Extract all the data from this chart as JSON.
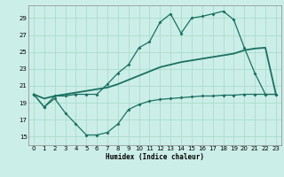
{
  "bg_color": "#cceee8",
  "grid_color": "#aaddcc",
  "line_color": "#1a7060",
  "xlabel": "Humidex (Indice chaleur)",
  "xlim": [
    -0.5,
    23.5
  ],
  "ylim": [
    14,
    30.5
  ],
  "yticks": [
    15,
    17,
    19,
    21,
    23,
    25,
    27,
    29
  ],
  "xticks": [
    0,
    1,
    2,
    3,
    4,
    5,
    6,
    7,
    8,
    9,
    10,
    11,
    12,
    13,
    14,
    15,
    16,
    17,
    18,
    19,
    20,
    21,
    22,
    23
  ],
  "line1_x": [
    0,
    1,
    2,
    3,
    4,
    5,
    6,
    7,
    8,
    9,
    10,
    11,
    12,
    13,
    14,
    15,
    16,
    17,
    18,
    19,
    20,
    21,
    22,
    23
  ],
  "line1_y": [
    20.0,
    18.5,
    19.8,
    19.8,
    20.0,
    20.0,
    20.0,
    21.2,
    22.5,
    23.5,
    25.5,
    26.2,
    28.5,
    29.5,
    27.2,
    29.0,
    29.2,
    29.5,
    29.8,
    28.8,
    25.5,
    22.5,
    20.0,
    20.0
  ],
  "line2_x": [
    0,
    1,
    2,
    3,
    4,
    5,
    6,
    7,
    8,
    9,
    10,
    11,
    12,
    13,
    14,
    15,
    16,
    17,
    18,
    19,
    20,
    21,
    22,
    23
  ],
  "line2_y": [
    20.0,
    19.5,
    19.8,
    20.0,
    20.2,
    20.4,
    20.6,
    20.8,
    21.2,
    21.7,
    22.2,
    22.7,
    23.2,
    23.5,
    23.8,
    24.0,
    24.2,
    24.4,
    24.6,
    24.8,
    25.2,
    25.4,
    25.5,
    20.0
  ],
  "line3_x": [
    0,
    1,
    2,
    3,
    4,
    5,
    6,
    7,
    8,
    9,
    10,
    11,
    12,
    13,
    14,
    15,
    16,
    17,
    18,
    19,
    20,
    21,
    22,
    23
  ],
  "line3_y": [
    20.0,
    18.5,
    19.5,
    17.8,
    16.5,
    15.2,
    15.2,
    15.5,
    16.5,
    18.2,
    18.8,
    19.2,
    19.4,
    19.5,
    19.6,
    19.7,
    19.8,
    19.8,
    19.9,
    19.9,
    20.0,
    20.0,
    20.0,
    20.0
  ]
}
